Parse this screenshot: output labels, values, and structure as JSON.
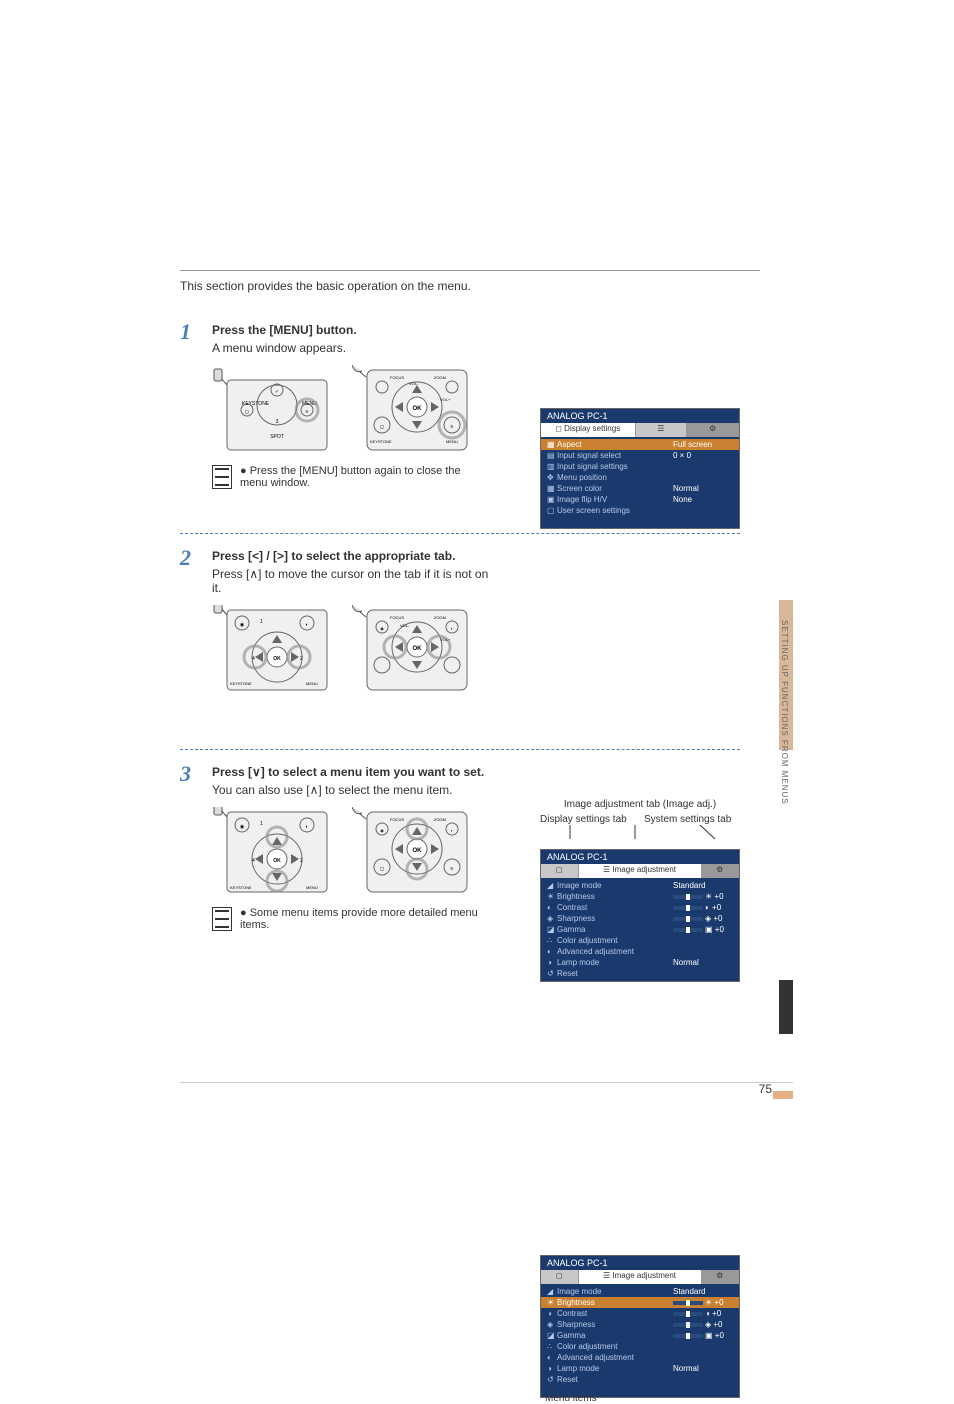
{
  "page": {
    "intro": "This section provides the basic operation on the menu.",
    "pageNumber": 75,
    "sideText": "SETTING UP FUNCTIONS FROM MENUS"
  },
  "steps": [
    {
      "num": "1",
      "title": "Press the [MENU] button.",
      "desc": "A menu window appears.",
      "note": "Press the [MENU] button again to close the menu window."
    },
    {
      "num": "2",
      "title": "Press [<] / [>] to select the appropriate tab.",
      "desc": "Press [∧] to move the cursor on the tab if it is not on it."
    },
    {
      "num": "3",
      "title": "Press [∨] to select a menu item you want to set.",
      "desc": "You can also use [∧] to select the menu item.",
      "note": "Some menu items provide more detailed menu items."
    }
  ],
  "tabLabels": {
    "top": "Image adjustment tab (Image adj.)",
    "left": "Display settings tab",
    "right": "System settings tab"
  },
  "menuCaption": "Menu items",
  "menu1": {
    "header": "ANALOG PC-1",
    "tab": "Display settings",
    "items": [
      {
        "sym": "▦",
        "label": "Aspect",
        "value": "Full screen",
        "highlighted": true
      },
      {
        "sym": "▤",
        "label": "Input signal select",
        "value": "0 × 0"
      },
      {
        "sym": "▥",
        "label": "Input signal settings",
        "value": ""
      },
      {
        "sym": "✥",
        "label": "Menu position",
        "value": ""
      },
      {
        "sym": "▦",
        "label": "Screen color",
        "value": "Normal"
      },
      {
        "sym": "▣",
        "label": "Image flip H/V",
        "value": "None"
      },
      {
        "sym": "▢",
        "label": "User screen settings",
        "value": ""
      }
    ]
  },
  "menu2": {
    "header": "ANALOG PC-1",
    "tab": "Image adjustment",
    "items": [
      {
        "sym": "◢",
        "label": "Image mode",
        "value": "Standard"
      },
      {
        "sym": "☀",
        "label": "Brightness",
        "slider": true,
        "sliderValue": "☀ +0"
      },
      {
        "sym": "◐",
        "label": "Contrast",
        "slider": true,
        "sliderValue": "◐ +0"
      },
      {
        "sym": "◈",
        "label": "Sharpness",
        "slider": true,
        "sliderValue": "◈ +0"
      },
      {
        "sym": "◪",
        "label": "Gamma",
        "slider": true,
        "sliderValue": "▣ +0"
      },
      {
        "sym": "∴",
        "label": "Color adjustment",
        "value": ""
      },
      {
        "sym": "◐",
        "label": "Advanced adjustment",
        "value": ""
      },
      {
        "sym": "◑",
        "label": "Lamp mode",
        "value": "Normal"
      },
      {
        "sym": "↺",
        "label": "Reset",
        "value": ""
      }
    ]
  },
  "menu3": {
    "header": "ANALOG PC-1",
    "tab": "Image adjustment",
    "items": [
      {
        "sym": "◢",
        "label": "Image mode",
        "value": "Standard"
      },
      {
        "sym": "☀",
        "label": "Brightness",
        "slider": true,
        "sliderValue": "☀ +0",
        "highlighted": true
      },
      {
        "sym": "◑",
        "label": "Contrast",
        "slider": true,
        "sliderValue": "◑ +0"
      },
      {
        "sym": "◈",
        "label": "Sharpness",
        "slider": true,
        "sliderValue": "◈ +0"
      },
      {
        "sym": "◪",
        "label": "Gamma",
        "slider": true,
        "sliderValue": "▣ +0"
      },
      {
        "sym": "∴",
        "label": "Color adjustment",
        "value": ""
      },
      {
        "sym": "◐",
        "label": "Advanced adjustment",
        "value": ""
      },
      {
        "sym": "◑",
        "label": "Lamp mode",
        "value": "Normal"
      },
      {
        "sym": "↺",
        "label": "Reset",
        "value": ""
      }
    ]
  },
  "colors": {
    "stepNumber": "#4a7fb8",
    "menuBg": "#1a3a6e",
    "highlight": "#c98030",
    "sideTab": "#d8b898"
  }
}
